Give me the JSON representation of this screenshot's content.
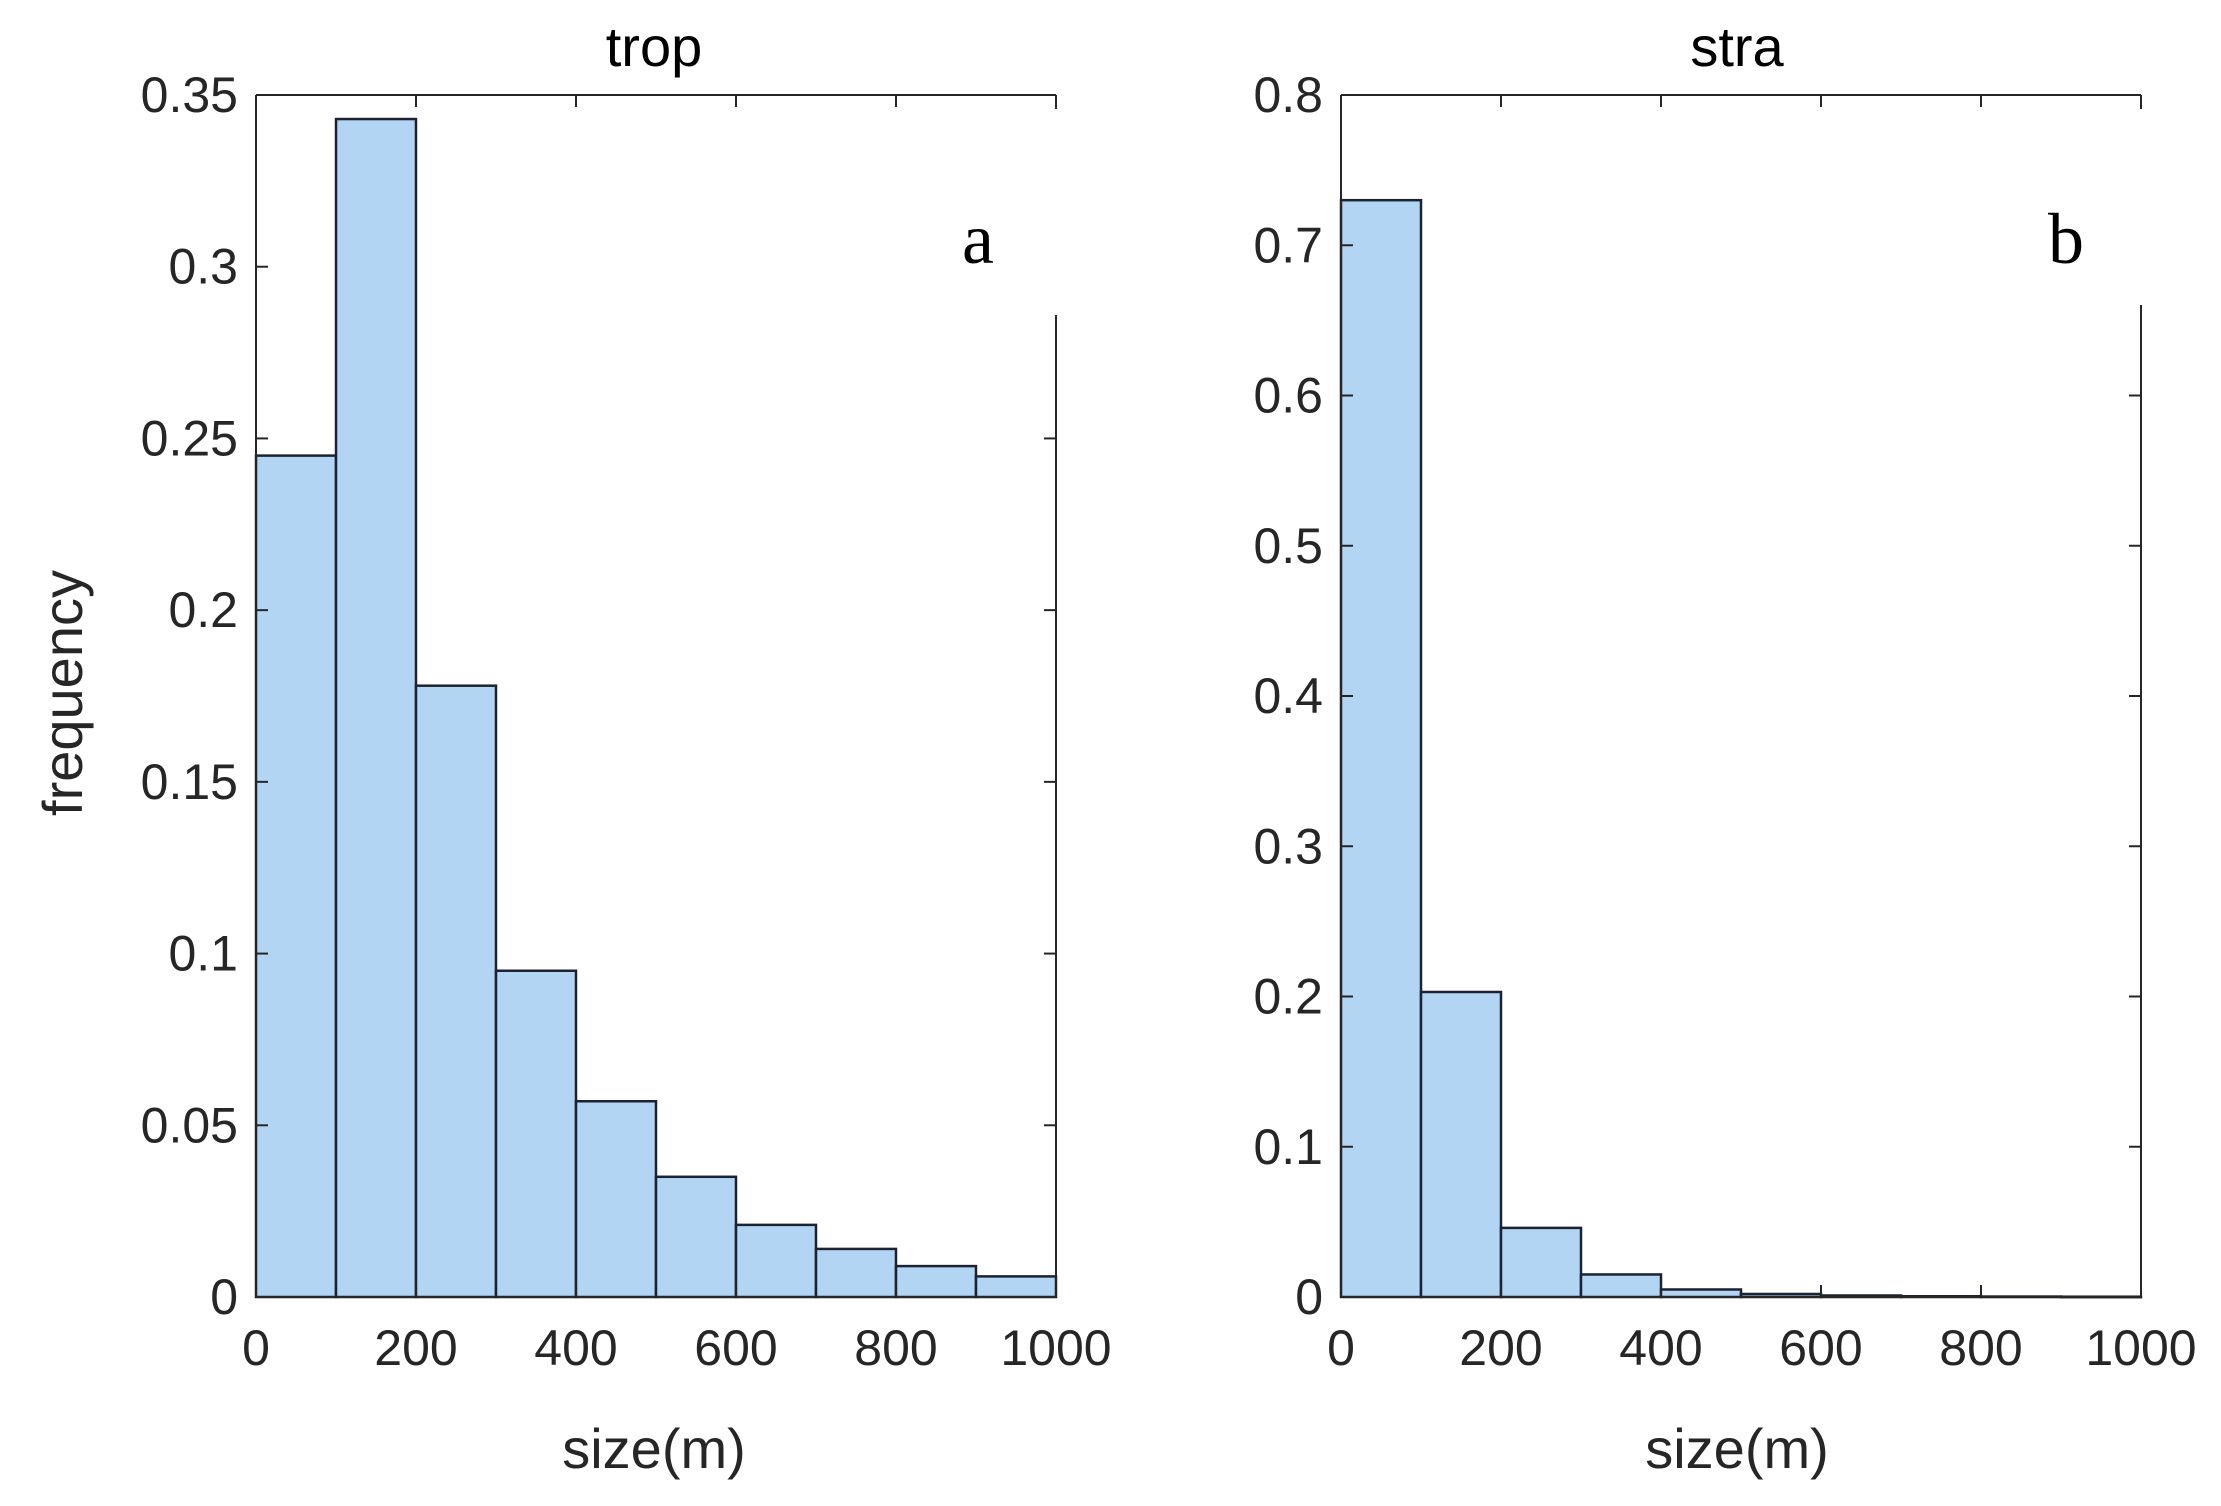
{
  "chart_data": [
    {
      "type": "bar",
      "title": "trop",
      "panel_label": "a",
      "xlabel": "size(m)",
      "ylabel": "frequency",
      "xlim": [
        0,
        1000
      ],
      "ylim": [
        0,
        0.35
      ],
      "xticks": [
        "0",
        "200",
        "400",
        "600",
        "800",
        "1000"
      ],
      "yticks": [
        "0",
        "0.05",
        "0.1",
        "0.15",
        "0.2",
        "0.25",
        "0.3",
        "0.35"
      ],
      "bin_edges": [
        0,
        100,
        200,
        300,
        400,
        500,
        600,
        700,
        800,
        900,
        1000
      ],
      "values": [
        0.245,
        0.343,
        0.178,
        0.095,
        0.057,
        0.035,
        0.021,
        0.014,
        0.009,
        0.006
      ]
    },
    {
      "type": "bar",
      "title": "stra",
      "panel_label": "b",
      "xlabel": "size(m)",
      "ylabel": "",
      "xlim": [
        0,
        1000
      ],
      "ylim": [
        0,
        0.8
      ],
      "xticks": [
        "0",
        "200",
        "400",
        "600",
        "800",
        "1000"
      ],
      "yticks": [
        "0",
        "0.1",
        "0.2",
        "0.3",
        "0.4",
        "0.5",
        "0.6",
        "0.7",
        "0.8"
      ],
      "bin_edges": [
        0,
        100,
        200,
        300,
        400,
        500,
        600,
        700,
        800,
        900,
        1000
      ],
      "values": [
        0.73,
        0.203,
        0.046,
        0.015,
        0.005,
        0.002,
        0.001,
        0.0005,
        0.0003,
        0.0002
      ]
    }
  ],
  "colors": {
    "bar_fill": "#b3d5f4",
    "bar_edge": "#1c2230",
    "axis": "#262626"
  }
}
